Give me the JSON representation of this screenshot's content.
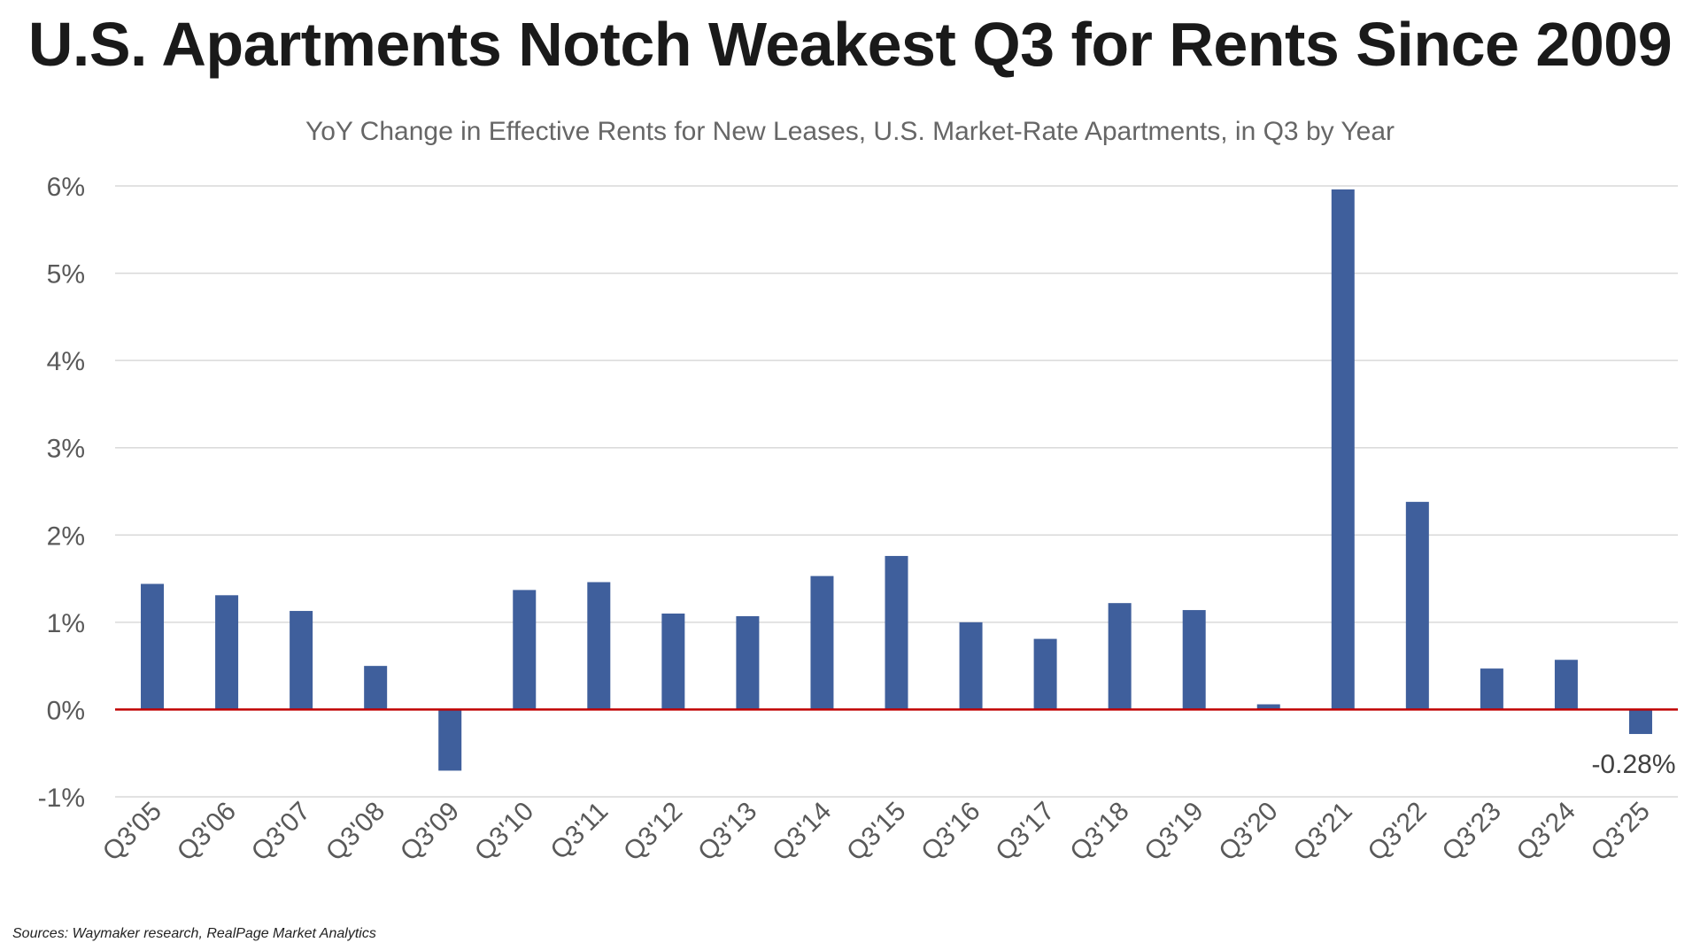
{
  "header": {
    "title": "U.S. Apartments Notch Weakest Q3 for Rents Since 2009",
    "subtitle": "YoY Change in Effective Rents for New Leases, U.S. Market-Rate Apartments, in Q3 by Year"
  },
  "footer": {
    "source": "Sources: Waymaker research, RealPage Market Analytics"
  },
  "chart_data": {
    "type": "bar",
    "title": "U.S. Apartments Notch Weakest Q3 for Rents Since 2009",
    "subtitle": "YoY Change in Effective Rents for New Leases, U.S. Market-Rate Apartments, in Q3 by Year",
    "xlabel": "",
    "ylabel": "",
    "categories": [
      "Q3'05",
      "Q3'06",
      "Q3'07",
      "Q3'08",
      "Q3'09",
      "Q3'10",
      "Q3'11",
      "Q3'12",
      "Q3'13",
      "Q3'14",
      "Q3'15",
      "Q3'16",
      "Q3'17",
      "Q3'18",
      "Q3'19",
      "Q3'20",
      "Q3'21",
      "Q3'22",
      "Q3'23",
      "Q3'24",
      "Q3'25"
    ],
    "values": [
      1.44,
      1.31,
      1.13,
      0.5,
      -0.7,
      1.37,
      1.46,
      1.1,
      1.07,
      1.53,
      1.76,
      1.0,
      0.81,
      1.22,
      1.14,
      0.06,
      5.96,
      2.38,
      0.47,
      0.57,
      -0.28
    ],
    "ylim": [
      -1,
      6
    ],
    "yticks": [
      -1,
      0,
      1,
      2,
      3,
      4,
      5,
      6
    ],
    "ytick_labels": [
      "-1%",
      "0%",
      "1%",
      "2%",
      "3%",
      "4%",
      "5%",
      "6%"
    ],
    "grid": true,
    "legend": "none",
    "bar_color": "#3f5f9c",
    "zero_line_color": "#c00000",
    "annotations": [
      {
        "category": "Q3'25",
        "text": "-0.28%"
      }
    ]
  }
}
